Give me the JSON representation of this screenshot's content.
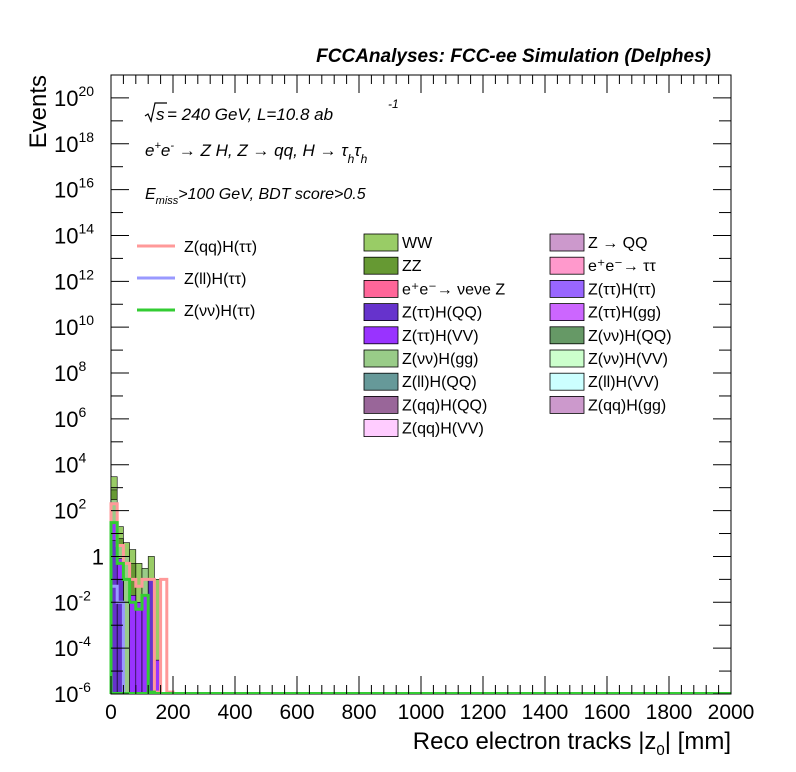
{
  "header": {
    "banner": "FCCAnalyses: FCC-ee Simulation (Delphes)",
    "energy_line": "= 240 GeV, L=10.8 ab",
    "energy_prefix": "s",
    "lumi_exponent": "-1",
    "process_line": "e⁺e⁻ → Z H, Z → qq, H → τhτh",
    "selection_line": "E_miss>100 GeV, BDT score>0.5"
  },
  "chart_data": {
    "type": "bar",
    "title": "",
    "xlabel": "Reco electron tracks |z0| [mm]",
    "ylabel": "Events",
    "xlim": [
      0,
      2000
    ],
    "ylim": [
      1e-06,
      1e+21
    ],
    "yscale": "log",
    "grid": false,
    "x_ticks": [
      "0",
      "200",
      "400",
      "600",
      "800",
      "1000",
      "1200",
      "1400",
      "1600",
      "1800",
      "2000"
    ],
    "y_ticks": [
      {
        "base": "10",
        "exp": "-6"
      },
      {
        "base": "10",
        "exp": "-4"
      },
      {
        "base": "10",
        "exp": "-2"
      },
      {
        "base": "1",
        "exp": ""
      },
      {
        "base": "10",
        "exp": "2"
      },
      {
        "base": "10",
        "exp": "4"
      },
      {
        "base": "10",
        "exp": "6"
      },
      {
        "base": "10",
        "exp": "8"
      },
      {
        "base": "10",
        "exp": "10"
      },
      {
        "base": "10",
        "exp": "12"
      },
      {
        "base": "10",
        "exp": "14"
      },
      {
        "base": "10",
        "exp": "16"
      },
      {
        "base": "10",
        "exp": "18"
      },
      {
        "base": "10",
        "exp": "20"
      }
    ],
    "bin_width": 20,
    "background_stack": [
      {
        "name": "WW",
        "color": "#99cc66",
        "bins": [
          [
            0,
            20,
            3000
          ],
          [
            20,
            40,
            20
          ],
          [
            40,
            60,
            4
          ],
          [
            60,
            80,
            2
          ],
          [
            80,
            100,
            0.5
          ],
          [
            120,
            140,
            1
          ],
          [
            140,
            160,
            0.1
          ]
        ]
      },
      {
        "name": "ZZ",
        "color": "#669933",
        "bins": [
          [
            0,
            20,
            800
          ],
          [
            20,
            40,
            6
          ],
          [
            40,
            60,
            1
          ],
          [
            60,
            80,
            0.5
          ]
        ]
      },
      {
        "name": "Z(vv)H(gg)",
        "color": "#99cc88",
        "bins": [
          [
            0,
            20,
            300
          ],
          [
            20,
            40,
            3
          ],
          [
            40,
            60,
            1
          ],
          [
            100,
            120,
            0.3
          ]
        ]
      },
      {
        "name": "Z(tt)H(VV)",
        "color": "#9933ff",
        "bins": [
          [
            0,
            20,
            30
          ],
          [
            20,
            40,
            0.8
          ],
          [
            60,
            80,
            0.02
          ],
          [
            80,
            100,
            0.01
          ],
          [
            100,
            120,
            0.02
          ],
          [
            140,
            160,
            3e-05
          ]
        ]
      },
      {
        "name": "Z(tt)H(QQ)",
        "color": "#6633cc",
        "bins": [
          [
            0,
            20,
            5
          ],
          [
            20,
            40,
            0.1
          ],
          [
            120,
            140,
            0.1
          ]
        ]
      }
    ],
    "signal_lines": [
      {
        "name": "Z(qq)H(ττ)",
        "color": "#ff9999",
        "steps": [
          [
            0,
            20,
            200
          ],
          [
            20,
            40,
            3
          ],
          [
            40,
            60,
            0.5
          ],
          [
            60,
            80,
            0.1
          ],
          [
            80,
            100,
            0.05
          ],
          [
            100,
            120,
            0.1
          ],
          [
            120,
            140,
            0.1
          ],
          [
            140,
            160,
            1.2e-06
          ],
          [
            160,
            180,
            0.1
          ],
          [
            180,
            200,
            1.2e-06
          ]
        ]
      },
      {
        "name": "Z(ll)H(ττ)",
        "color": "#9999ff",
        "steps": [
          [
            0,
            20,
            0.05
          ],
          [
            20,
            40,
            0.01
          ]
        ]
      },
      {
        "name": "Z(νν)H(ττ)",
        "color": "#33cc33",
        "steps": [
          [
            0,
            20,
            30
          ],
          [
            20,
            40,
            0.5
          ],
          [
            40,
            60,
            0.1
          ],
          [
            60,
            80,
            0.01
          ],
          [
            80,
            100,
            0.005
          ],
          [
            100,
            120,
            0.02
          ],
          [
            120,
            140,
            1.2e-06
          ]
        ]
      }
    ],
    "legend_lines": [
      {
        "name": "Z(qq)H(ττ)",
        "color": "#ff9999"
      },
      {
        "name": "Z(ll)H(ττ)",
        "color": "#9999ff"
      },
      {
        "name": "Z(νν)H(ττ)",
        "color": "#33cc33"
      }
    ],
    "legend_boxes": [
      {
        "name": "WW",
        "color": "#99cc66"
      },
      {
        "name": "Z → QQ",
        "color": "#cc99cc"
      },
      {
        "name": "ZZ",
        "color": "#669933"
      },
      {
        "name": "e⁺e⁻→ ττ",
        "color": "#ff99cc"
      },
      {
        "name": "e⁺e⁻→ νeνe Z",
        "color": "#ff6699"
      },
      {
        "name": "Z(ττ)H(ττ)",
        "color": "#9966ff"
      },
      {
        "name": "Z(ττ)H(QQ)",
        "color": "#6633cc"
      },
      {
        "name": "Z(ττ)H(gg)",
        "color": "#cc66ff"
      },
      {
        "name": "Z(ττ)H(VV)",
        "color": "#9933ff"
      },
      {
        "name": "Z(νν)H(QQ)",
        "color": "#669966"
      },
      {
        "name": "Z(νν)H(gg)",
        "color": "#99cc88"
      },
      {
        "name": "Z(νν)H(VV)",
        "color": "#ccffcc"
      },
      {
        "name": "Z(ll)H(QQ)",
        "color": "#669999"
      },
      {
        "name": "Z(ll)H(VV)",
        "color": "#ccffff"
      },
      {
        "name": "Z(qq)H(QQ)",
        "color": "#996699"
      },
      {
        "name": "Z(qq)H(gg)",
        "color": "#cc99cc"
      },
      {
        "name": "Z(qq)H(VV)",
        "color": "#ffccff"
      }
    ]
  }
}
